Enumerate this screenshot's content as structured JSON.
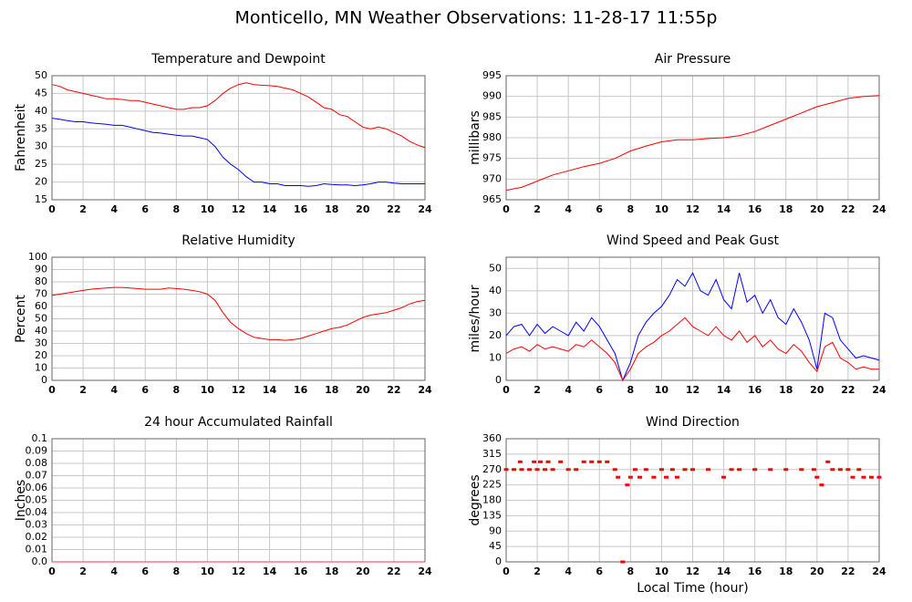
{
  "title": "Monticello, MN Weather Observations: 11-28-17 11:55p",
  "chart_data": [
    {
      "type": "line",
      "title": "Temperature and Dewpoint",
      "ylabel": "Fahrenheit",
      "xlim": [
        0,
        24
      ],
      "xticks": [
        0,
        2,
        4,
        6,
        8,
        10,
        12,
        14,
        16,
        18,
        20,
        22,
        24
      ],
      "ylim": [
        15,
        50
      ],
      "yticks": [
        15,
        20,
        25,
        30,
        35,
        40,
        45,
        50
      ],
      "grid": true,
      "x": [
        0,
        0.5,
        1,
        1.5,
        2,
        2.5,
        3,
        3.5,
        4,
        4.5,
        5,
        5.5,
        6,
        6.5,
        7,
        7.5,
        8,
        8.5,
        9,
        9.5,
        10,
        10.5,
        11,
        11.5,
        12,
        12.5,
        13,
        13.5,
        14,
        14.5,
        15,
        15.5,
        16,
        16.5,
        17,
        17.5,
        18,
        18.5,
        19,
        19.5,
        20,
        20.5,
        21,
        21.5,
        22,
        22.5,
        23,
        23.5,
        24
      ],
      "series": [
        {
          "name": "Temperature",
          "color": "#ff0000",
          "values": [
            47.5,
            47,
            46,
            45.5,
            45,
            44.5,
            44,
            43.5,
            43.5,
            43.3,
            43,
            43,
            42.5,
            42,
            41.5,
            41,
            40.5,
            40.5,
            41,
            41,
            41.5,
            43,
            45,
            46.5,
            47.5,
            48,
            47.5,
            47.3,
            47.2,
            47,
            46.5,
            46,
            45,
            44,
            42.5,
            41,
            40.5,
            39,
            38.5,
            37,
            35.5,
            35,
            35.5,
            35,
            34,
            33,
            31.5,
            30.5,
            29.7
          ]
        },
        {
          "name": "Dewpoint",
          "color": "#0000ff",
          "values": [
            38,
            37.7,
            37.3,
            37,
            37,
            36.7,
            36.5,
            36.3,
            36,
            36,
            35.5,
            35,
            34.5,
            34,
            33.8,
            33.5,
            33.2,
            33,
            33,
            32.5,
            32,
            30,
            27,
            25,
            23.5,
            21.5,
            20,
            20,
            19.5,
            19.5,
            19,
            19,
            19,
            18.8,
            19,
            19.5,
            19.3,
            19.2,
            19.2,
            19,
            19.2,
            19.5,
            20,
            20,
            19.7,
            19.5,
            19.5,
            19.5,
            19.5
          ]
        }
      ]
    },
    {
      "type": "line",
      "title": "Air Pressure",
      "ylabel": "millibars",
      "xlim": [
        0,
        24
      ],
      "xticks": [
        0,
        2,
        4,
        6,
        8,
        10,
        12,
        14,
        16,
        18,
        20,
        22,
        24
      ],
      "ylim": [
        965,
        995
      ],
      "yticks": [
        965,
        970,
        975,
        980,
        985,
        990,
        995
      ],
      "grid": true,
      "x": [
        0,
        1,
        2,
        3,
        4,
        5,
        6,
        7,
        8,
        9,
        10,
        11,
        12,
        13,
        14,
        15,
        16,
        17,
        18,
        19,
        20,
        21,
        22,
        23,
        24
      ],
      "series": [
        {
          "name": "Pressure",
          "color": "#ff0000",
          "values": [
            967.3,
            968,
            969.5,
            971,
            972,
            973,
            973.8,
            975,
            976.8,
            978,
            979,
            979.5,
            979.5,
            979.8,
            980,
            980.5,
            981.5,
            983,
            984.5,
            986,
            987.5,
            988.5,
            989.5,
            990,
            990.2
          ]
        }
      ]
    },
    {
      "type": "line",
      "title": "Relative Humidity",
      "ylabel": "Percent",
      "xlim": [
        0,
        24
      ],
      "xticks": [
        0,
        2,
        4,
        6,
        8,
        10,
        12,
        14,
        16,
        18,
        20,
        22,
        24
      ],
      "ylim": [
        0,
        100
      ],
      "yticks": [
        0,
        10,
        20,
        30,
        40,
        50,
        60,
        70,
        80,
        90,
        100
      ],
      "grid": true,
      "x": [
        0,
        0.5,
        1,
        1.5,
        2,
        2.5,
        3,
        3.5,
        4,
        4.5,
        5,
        5.5,
        6,
        6.5,
        7,
        7.5,
        8,
        8.5,
        9,
        9.5,
        10,
        10.5,
        11,
        11.5,
        12,
        12.5,
        13,
        13.5,
        14,
        14.5,
        15,
        15.5,
        16,
        16.5,
        17,
        17.5,
        18,
        18.5,
        19,
        19.5,
        20,
        20.5,
        21,
        21.5,
        22,
        22.5,
        23,
        23.5,
        24
      ],
      "series": [
        {
          "name": "Relative Humidity",
          "color": "#ff0000",
          "values": [
            69,
            70,
            71,
            72,
            73,
            74,
            74.5,
            75,
            75.5,
            75.5,
            75,
            74.5,
            74,
            74,
            74,
            75,
            74.5,
            74,
            73,
            72,
            70,
            65,
            55,
            47,
            42,
            38,
            35,
            34,
            33,
            33,
            32.5,
            33,
            34,
            36,
            38,
            40,
            42,
            43,
            45,
            48,
            51,
            53,
            54,
            55,
            57,
            59,
            62,
            64,
            65
          ]
        }
      ]
    },
    {
      "type": "line",
      "title": "Wind Speed and Peak Gust",
      "ylabel": "miles/hour",
      "xlim": [
        0,
        24
      ],
      "xticks": [
        0,
        2,
        4,
        6,
        8,
        10,
        12,
        14,
        16,
        18,
        20,
        22,
        24
      ],
      "ylim": [
        0,
        55
      ],
      "yticks": [
        0,
        10,
        20,
        30,
        40,
        50
      ],
      "grid": true,
      "x": [
        0,
        0.5,
        1,
        1.5,
        2,
        2.5,
        3,
        3.5,
        4,
        4.5,
        5,
        5.5,
        6,
        6.5,
        7,
        7.5,
        8,
        8.5,
        9,
        9.5,
        10,
        10.5,
        11,
        11.5,
        12,
        12.5,
        13,
        13.5,
        14,
        14.5,
        15,
        15.5,
        16,
        16.5,
        17,
        17.5,
        18,
        18.5,
        19,
        19.5,
        20,
        20.5,
        21,
        21.5,
        22,
        22.5,
        23,
        23.5,
        24
      ],
      "series": [
        {
          "name": "Peak Gust",
          "color": "#0000ff",
          "values": [
            20,
            24,
            25,
            20,
            25,
            21,
            24,
            22,
            20,
            26,
            22,
            28,
            24,
            18,
            12,
            0,
            8,
            20,
            26,
            30,
            33,
            38,
            45,
            42,
            48,
            40,
            38,
            45,
            36,
            32,
            48,
            35,
            38,
            30,
            36,
            28,
            25,
            32,
            26,
            18,
            5,
            30,
            28,
            18,
            14,
            10,
            11,
            10,
            9
          ]
        },
        {
          "name": "Wind Speed",
          "color": "#ff0000",
          "values": [
            12,
            14,
            15,
            13,
            16,
            14,
            15,
            14,
            13,
            16,
            15,
            18,
            15,
            12,
            8,
            0,
            5,
            12,
            15,
            17,
            20,
            22,
            25,
            28,
            24,
            22,
            20,
            24,
            20,
            18,
            22,
            17,
            20,
            15,
            18,
            14,
            12,
            16,
            13,
            8,
            4,
            15,
            17,
            10,
            8,
            5,
            6,
            5,
            5
          ]
        }
      ]
    },
    {
      "type": "line",
      "title": "24 hour Accumulated Rainfall",
      "ylabel": "Inches",
      "xlim": [
        0,
        24
      ],
      "xticks": [
        0,
        2,
        4,
        6,
        8,
        10,
        12,
        14,
        16,
        18,
        20,
        22,
        24
      ],
      "ylim": [
        0,
        0.1
      ],
      "yticks": [
        {
          "value": 0,
          "label": "0.0"
        },
        0.01,
        0.02,
        0.03,
        0.04,
        0.05,
        0.06,
        0.07,
        0.08,
        0.09,
        0.1
      ],
      "grid": true,
      "x": [
        0,
        24
      ],
      "series": [
        {
          "name": "Rainfall",
          "color": "#ff3366",
          "values": [
            0,
            0
          ]
        }
      ]
    },
    {
      "type": "scatter",
      "title": "Wind Direction",
      "ylabel": "degrees",
      "xlabel": "Local Time (hour)",
      "xlim": [
        0,
        24
      ],
      "xticks": [
        0,
        2,
        4,
        6,
        8,
        10,
        12,
        14,
        16,
        18,
        20,
        22,
        24
      ],
      "ylim": [
        0,
        360
      ],
      "yticks": [
        0,
        45,
        90,
        135,
        180,
        225,
        270,
        315,
        360
      ],
      "grid": true,
      "x": [
        0,
        0.5,
        0.9,
        1,
        1.5,
        1.8,
        2,
        2.2,
        2.5,
        2.7,
        3,
        3.5,
        4,
        4.5,
        5,
        5.5,
        6,
        6.5,
        7,
        7.2,
        7.5,
        7.8,
        8,
        8.3,
        8.6,
        9,
        9.5,
        10,
        10.3,
        10.7,
        11,
        11.5,
        12,
        13,
        14,
        14.5,
        15,
        16,
        17,
        18,
        19,
        19.8,
        20,
        20.3,
        20.7,
        21,
        21.5,
        22,
        22.3,
        22.7,
        23,
        23.5,
        24
      ],
      "series": [
        {
          "name": "Wind Direction",
          "color": "#ff0000",
          "values": [
            270,
            270,
            292.5,
            270,
            270,
            292.5,
            270,
            292.5,
            270,
            292.5,
            270,
            292.5,
            270,
            270,
            292.5,
            292.5,
            292.5,
            292.5,
            270,
            247.5,
            0,
            225,
            247.5,
            270,
            247.5,
            270,
            247.5,
            270,
            247.5,
            270,
            247.5,
            270,
            270,
            270,
            247.5,
            270,
            270,
            270,
            270,
            270,
            270,
            270,
            247.5,
            225,
            292.5,
            270,
            270,
            270,
            247.5,
            270,
            247.5,
            247.5,
            247.5
          ]
        }
      ]
    }
  ]
}
